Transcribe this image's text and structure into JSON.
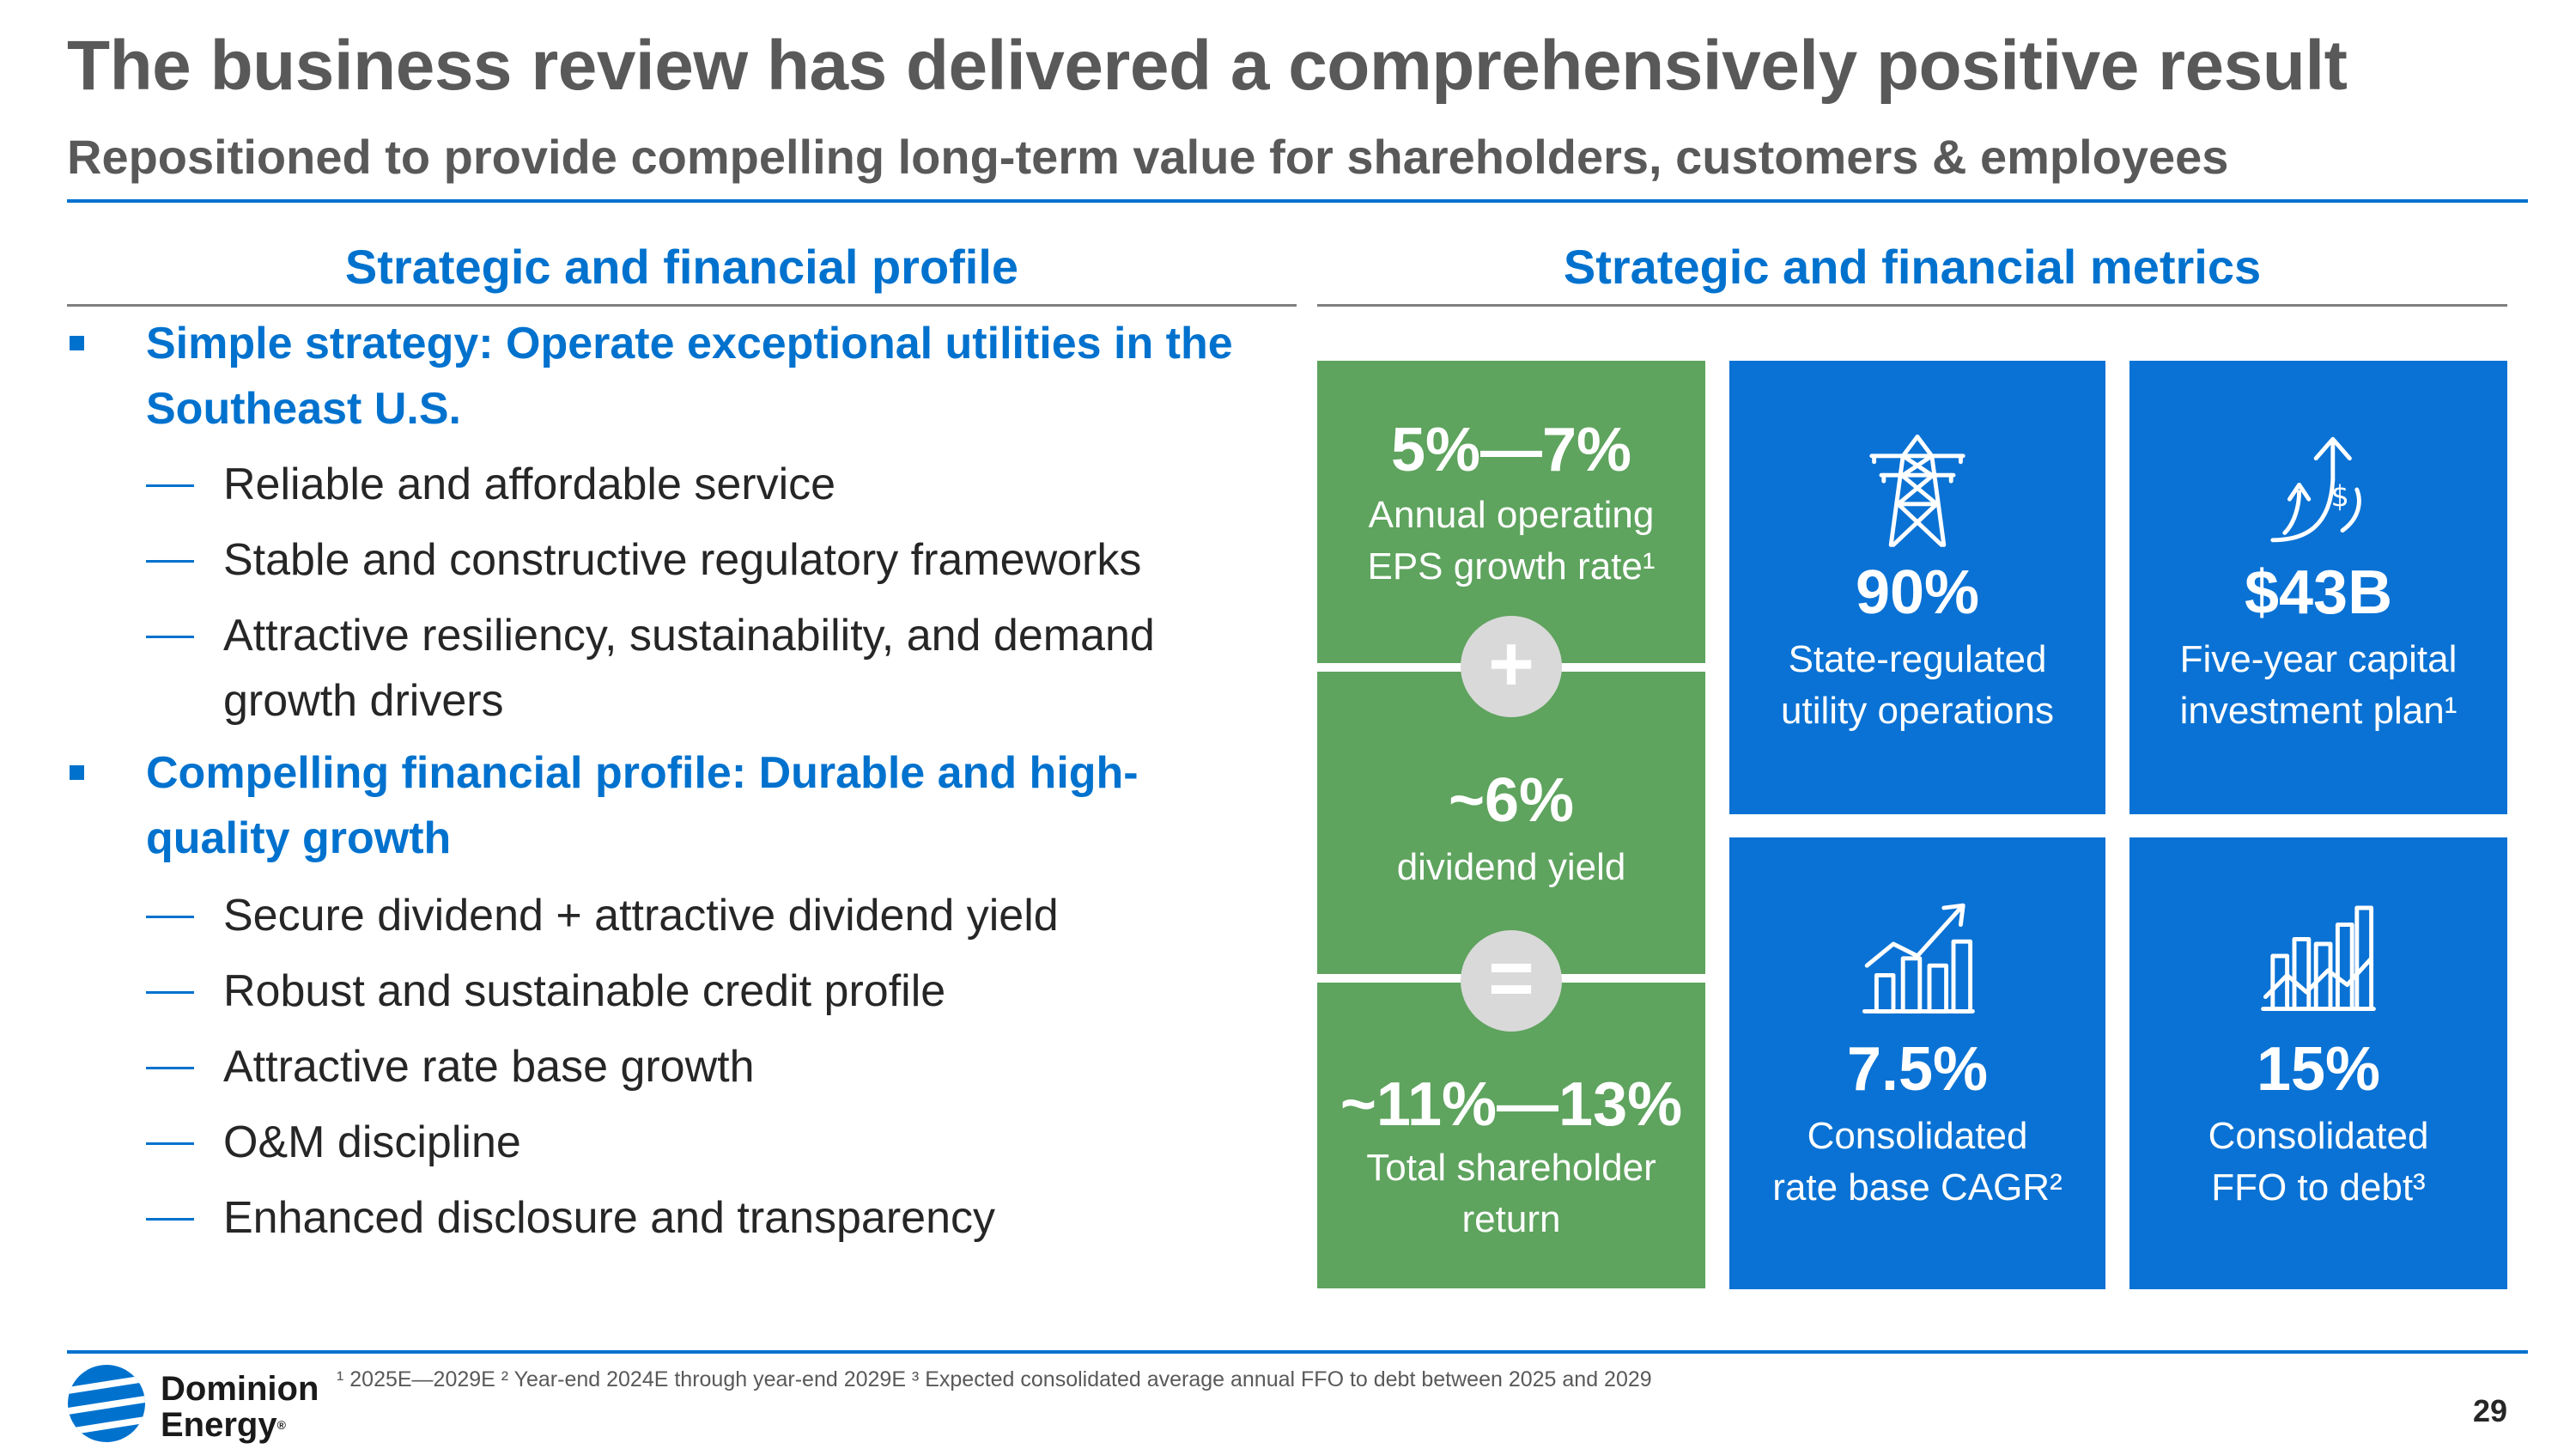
{
  "header": {
    "title": "The business review has delivered a comprehensively positive result",
    "subtitle": "Repositioned to provide compelling long-term value for shareholders, customers & employees"
  },
  "left": {
    "heading": "Strategic and financial profile",
    "bullets": [
      {
        "lines": [
          "Simple strategy: Operate exceptional utilities in the",
          "Southeast U.S."
        ],
        "subs": [
          {
            "lines": [
              "Reliable and affordable service"
            ]
          },
          {
            "lines": [
              "Stable and constructive regulatory frameworks"
            ]
          },
          {
            "lines": [
              "Attractive resiliency, sustainability, and demand",
              "growth drivers"
            ]
          }
        ]
      },
      {
        "lines": [
          "Compelling financial profile: Durable and high-",
          "quality growth"
        ],
        "subs": [
          {
            "lines": [
              "Secure dividend + attractive dividend yield"
            ]
          },
          {
            "lines": [
              "Robust and sustainable credit profile"
            ]
          },
          {
            "lines": [
              "Attractive rate base growth"
            ]
          },
          {
            "lines": [
              "O&M discipline"
            ]
          },
          {
            "lines": [
              "Enhanced disclosure and transparency"
            ]
          }
        ]
      }
    ]
  },
  "right": {
    "heading": "Strategic and financial metrics",
    "green": {
      "eps": {
        "value": "5%—7%",
        "label1": "Annual operating",
        "label2": "EPS growth rate¹"
      },
      "plus": "+",
      "dividend": {
        "value": "~6%",
        "label1": "dividend yield"
      },
      "equals": "=",
      "tsr": {
        "value": "~11%—13%",
        "label1": "Total shareholder",
        "label2": "return"
      }
    },
    "tiles": [
      {
        "icon": "transmission-tower-icon",
        "value": "90%",
        "label1": "State-regulated",
        "label2": "utility operations"
      },
      {
        "icon": "dollar-growth-arrow-icon",
        "value": "$43B",
        "label1": "Five-year capital",
        "label2": "investment plan¹"
      },
      {
        "icon": "bar-chart-trend-icon",
        "value": "7.5%",
        "label1": "Consolidated",
        "label2": "rate base CAGR²"
      },
      {
        "icon": "bar-chart-line-icon",
        "value": "15%",
        "label1": "Consolidated",
        "label2": "FFO to debt³"
      }
    ]
  },
  "footer": {
    "logo_line1": "Dominion",
    "logo_line2": "Energy",
    "logo_mark": "®",
    "footnote": "¹ 2025E—2029E ² Year-end 2024E through year-end 2029E ³ Expected consolidated average annual FFO to debt between 2025 and 2029",
    "page": "29"
  },
  "colors": {
    "accent": "#0072ce",
    "green": "#5ea35e",
    "tile_blue": "#0a72d4",
    "title_grey": "#595959"
  }
}
